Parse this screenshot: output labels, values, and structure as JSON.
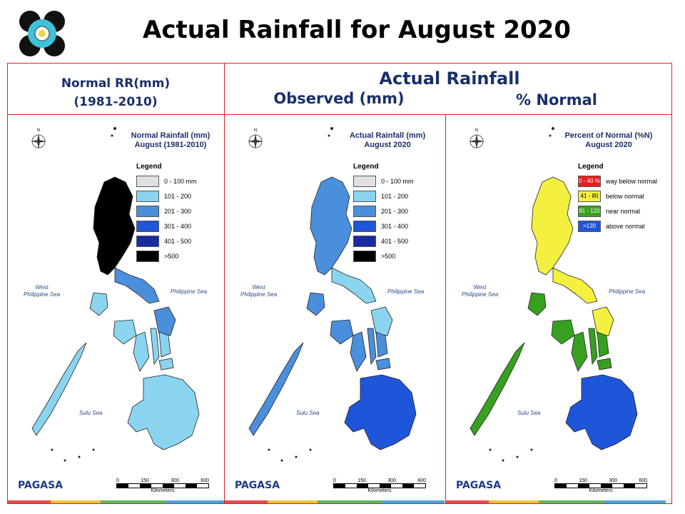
{
  "title": "Actual Rainfall for August 2020",
  "headers": {
    "normal_line1": "Normal RR(mm)",
    "normal_line2": "(1981-2010)",
    "actual": "Actual Rainfall",
    "observed": "Observed (mm)",
    "percent": "% Normal"
  },
  "panels": [
    {
      "id": "normal",
      "map_title_1": "Normal Rainfall (mm)",
      "map_title_2": "August (1981-2010)",
      "legend_title": "Legend",
      "legend": [
        {
          "label": "0 - 100 mm",
          "color": "#e0e0e0"
        },
        {
          "label": "101 - 200",
          "color": "#8ad4f0"
        },
        {
          "label": "201 - 300",
          "color": "#4a8fdc"
        },
        {
          "label": "301 - 400",
          "color": "#1f55d8"
        },
        {
          "label": "401 - 500",
          "color": "#1a2aa0"
        },
        {
          "label": ">500",
          "color": "#000000"
        }
      ],
      "sea_west_1": "West",
      "sea_west_2": "Philippine Sea",
      "sea_east": "Philippine Sea",
      "sea_south": "Sulu Sea",
      "logo_text": "PAGASA",
      "scale_labels": [
        "0",
        "150",
        "300",
        "600"
      ],
      "scale_unit": "Kilometers"
    },
    {
      "id": "observed",
      "map_title_1": "Actual Rainfall (mm)",
      "map_title_2": "August 2020",
      "legend_title": "Legend",
      "legend": [
        {
          "label": "0 - 100 mm",
          "color": "#e0e0e0"
        },
        {
          "label": "101 - 200",
          "color": "#8ad4f0"
        },
        {
          "label": "201 - 300",
          "color": "#4a8fdc"
        },
        {
          "label": "301 - 400",
          "color": "#1f55d8"
        },
        {
          "label": "401 - 500",
          "color": "#1a2aa0"
        },
        {
          "label": ">500",
          "color": "#000000"
        }
      ],
      "sea_west_1": "West",
      "sea_west_2": "Philippine Sea",
      "sea_east": "Philippine Sea",
      "sea_south": "Sulu Sea",
      "logo_text": "PAGASA",
      "scale_labels": [
        "0",
        "150",
        "300",
        "600"
      ],
      "scale_unit": "Kilometers"
    },
    {
      "id": "percent",
      "map_title_1": "Percent of Normal (%N)",
      "map_title_2": "August 2020",
      "legend_title": "Legend",
      "legend": [
        {
          "swatch": "0 - 40 %",
          "label": "way below normal",
          "color": "#e82020"
        },
        {
          "swatch": "41 - 80",
          "label": "below normal",
          "color": "#f4f040"
        },
        {
          "swatch": "81 - 120",
          "label": "near normal",
          "color": "#38a020"
        },
        {
          "swatch": ">120",
          "label": "above normal",
          "color": "#1f55d8"
        }
      ],
      "sea_west_1": "West",
      "sea_west_2": "Philippine Sea",
      "sea_east": "Philippine Sea",
      "sea_south": "Sulu Sea",
      "logo_text": "PAGASA",
      "scale_labels": [
        "0",
        "150",
        "300",
        "600"
      ],
      "scale_unit": "Kilometers"
    }
  ],
  "colors": {
    "frame": "#dd2222",
    "header_text": "#1a2f6b"
  }
}
